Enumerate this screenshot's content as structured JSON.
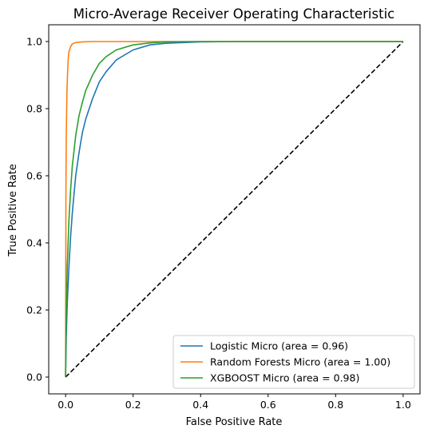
{
  "chart_data": {
    "type": "line",
    "title": "Micro-Average Receiver Operating Characteristic",
    "xlabel": "False Positive Rate",
    "ylabel": "True Positive Rate",
    "xlim": [
      -0.05,
      1.05
    ],
    "ylim": [
      -0.05,
      1.05
    ],
    "xticks": [
      0.0,
      0.2,
      0.4,
      0.6,
      0.8,
      1.0
    ],
    "yticks": [
      0.0,
      0.2,
      0.4,
      0.6,
      0.8,
      1.0
    ],
    "xtick_labels": [
      "0.0",
      "0.2",
      "0.4",
      "0.6",
      "0.8",
      "1.0"
    ],
    "ytick_labels": [
      "0.0",
      "0.2",
      "0.4",
      "0.6",
      "0.8",
      "1.0"
    ],
    "grid": false,
    "legend_position": "lower right",
    "series": [
      {
        "name": "Logistic Micro (area = 0.96)",
        "color": "#1f77b4",
        "x": [
          0,
          0.002,
          0.005,
          0.01,
          0.015,
          0.02,
          0.03,
          0.04,
          0.05,
          0.06,
          0.08,
          0.1,
          0.12,
          0.15,
          0.2,
          0.25,
          0.3,
          0.4,
          0.5,
          0.7,
          1.0
        ],
        "y": [
          0,
          0.12,
          0.22,
          0.33,
          0.42,
          0.49,
          0.6,
          0.67,
          0.73,
          0.77,
          0.83,
          0.88,
          0.91,
          0.945,
          0.975,
          0.99,
          0.995,
          0.999,
          1.0,
          1.0,
          1.0
        ]
      },
      {
        "name": "Random Forests Micro (area = 1.00)",
        "color": "#ff7f0e",
        "x": [
          0,
          0.001,
          0.002,
          0.004,
          0.006,
          0.008,
          0.01,
          0.015,
          0.02,
          0.03,
          0.05,
          0.08,
          0.1,
          0.2,
          0.5,
          1.0
        ],
        "y": [
          0,
          0.55,
          0.72,
          0.85,
          0.91,
          0.95,
          0.97,
          0.985,
          0.993,
          0.997,
          0.999,
          1.0,
          1.0,
          1.0,
          1.0,
          1.0
        ]
      },
      {
        "name": "XGBOOST Micro (area = 0.98)",
        "color": "#2ca02c",
        "x": [
          0,
          0.002,
          0.005,
          0.01,
          0.015,
          0.02,
          0.03,
          0.04,
          0.05,
          0.06,
          0.08,
          0.1,
          0.12,
          0.15,
          0.2,
          0.25,
          0.3,
          0.4,
          0.5,
          0.7,
          1.0
        ],
        "y": [
          0,
          0.2,
          0.33,
          0.47,
          0.56,
          0.63,
          0.72,
          0.78,
          0.82,
          0.855,
          0.9,
          0.935,
          0.955,
          0.975,
          0.99,
          0.996,
          0.999,
          1.0,
          1.0,
          1.0,
          1.0
        ]
      }
    ],
    "reference_line": {
      "x": [
        0,
        1
      ],
      "y": [
        0,
        1
      ],
      "color": "#000000",
      "style": "dashed"
    }
  }
}
